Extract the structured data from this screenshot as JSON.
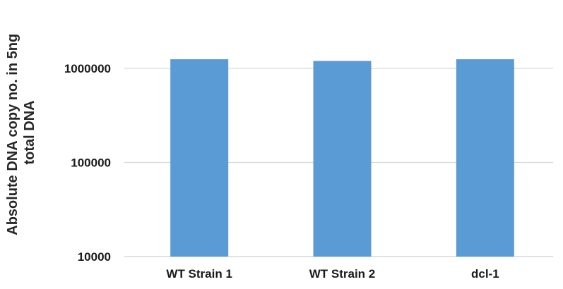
{
  "chart_data": {
    "type": "bar",
    "title": "",
    "xlabel": "",
    "ylabel_lines": [
      "Absolute DNA copy no. in 5ng",
      "total DNA"
    ],
    "yscale": "log",
    "ylim": [
      10000,
      2000000
    ],
    "yticks": [
      "10000",
      "100000",
      "1000000"
    ],
    "categories": [
      "WT Strain 1",
      "WT Strain 2",
      "dcl-1"
    ],
    "values": [
      1250000,
      1200000,
      1250000
    ],
    "bar_color": "#5b9bd5",
    "grid_color": "#d9d9d9",
    "grid": true,
    "legend": "none"
  }
}
